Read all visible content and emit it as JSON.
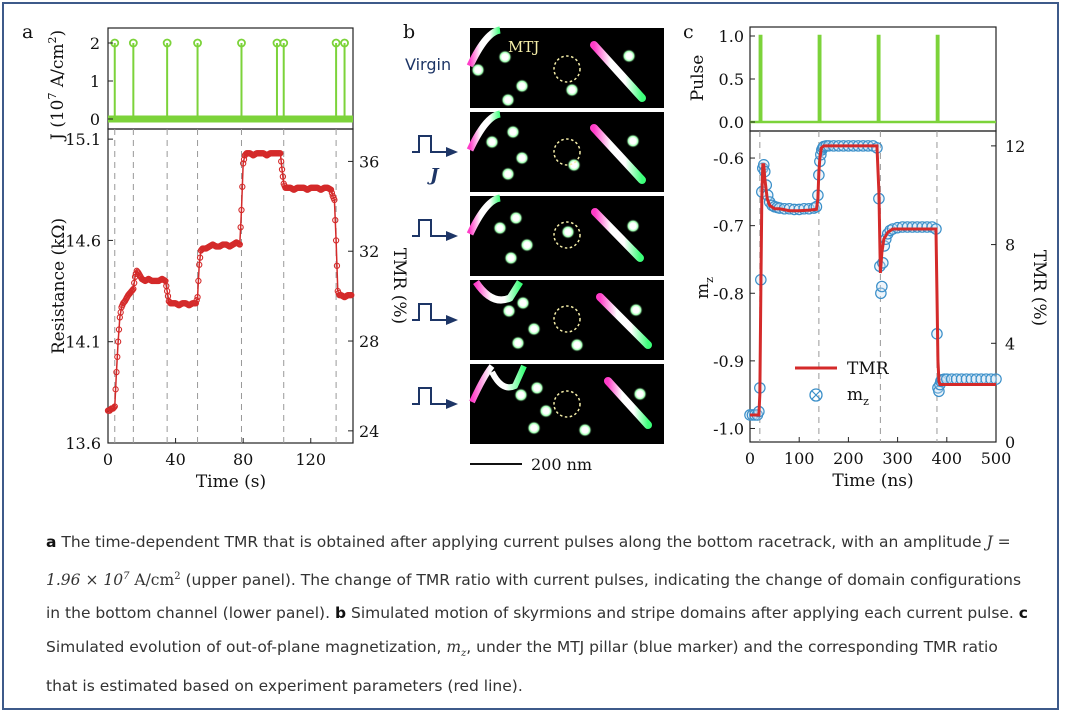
{
  "panel_labels": {
    "a": "a",
    "b": "b",
    "c": "c"
  },
  "chart_data": [
    {
      "type": "line",
      "panel": "a-top",
      "ylabel": "J (10^7 A/cm^2)",
      "ylabel_parts": {
        "main": "J (10",
        "exp1": "7",
        "unit": " A/cm",
        "exp2": "2",
        "close": ")"
      },
      "ylim": [
        0,
        2
      ],
      "xlim": [
        0,
        145
      ],
      "yticks": [
        "0",
        "1",
        "2"
      ],
      "pulse_times": [
        4,
        15,
        35,
        53,
        79,
        100,
        104,
        135,
        140
      ],
      "pulse_amplitude": 2,
      "color": "#7cd33a"
    },
    {
      "type": "line",
      "panel": "a-bottom",
      "xlabel": "Time (s)",
      "ylabel": "Resistance (kΩ)",
      "ylabel2": "TMR (%)",
      "xlim": [
        0,
        145
      ],
      "ylim": [
        13.6,
        15.15
      ],
      "xticks": [
        "0",
        "40",
        "80",
        "120"
      ],
      "yticks": [
        "13.6",
        "14.1",
        "14.6",
        "15.1"
      ],
      "yticks2": [
        "24",
        "28",
        "32",
        "36"
      ],
      "dashed_lines_x": [
        4,
        15,
        35,
        53,
        79,
        104,
        135
      ],
      "color": "#d42a2a",
      "series": [
        {
          "x": [
            0,
            1,
            2,
            3,
            4,
            5,
            6,
            7,
            8,
            9,
            10,
            12,
            14,
            15,
            16,
            17,
            18,
            20,
            22,
            24,
            26,
            28,
            30,
            32,
            34,
            35,
            36,
            37,
            38,
            40,
            42,
            44,
            46,
            48,
            50,
            52,
            53,
            54,
            55,
            56,
            58,
            60,
            62,
            64,
            66,
            68,
            70,
            72,
            74,
            76,
            78,
            79,
            80,
            81,
            82,
            84,
            86,
            88,
            90,
            92,
            94,
            96,
            98,
            100,
            102,
            103,
            104,
            105,
            106,
            108,
            110,
            112,
            114,
            116,
            118,
            120,
            122,
            124,
            126,
            128,
            130,
            132,
            133,
            134,
            135,
            136,
            137,
            138,
            140,
            142,
            144
          ],
          "y": [
            13.76,
            13.76,
            13.77,
            13.77,
            13.78,
            13.95,
            14.1,
            14.22,
            14.27,
            14.29,
            14.3,
            14.33,
            14.35,
            14.36,
            14.42,
            14.45,
            14.44,
            14.41,
            14.4,
            14.41,
            14.4,
            14.4,
            14.4,
            14.41,
            14.4,
            14.35,
            14.3,
            14.29,
            14.29,
            14.29,
            14.28,
            14.29,
            14.29,
            14.28,
            14.29,
            14.29,
            14.32,
            14.48,
            14.55,
            14.56,
            14.56,
            14.57,
            14.58,
            14.57,
            14.57,
            14.58,
            14.58,
            14.57,
            14.58,
            14.59,
            14.58,
            14.75,
            14.98,
            15.02,
            15.03,
            15.03,
            15.02,
            15.03,
            15.03,
            15.03,
            15.02,
            15.03,
            15.03,
            15.03,
            15.03,
            14.95,
            14.88,
            14.86,
            14.86,
            14.86,
            14.85,
            14.86,
            14.86,
            14.86,
            14.85,
            14.86,
            14.86,
            14.86,
            14.85,
            14.86,
            14.86,
            14.85,
            14.82,
            14.8,
            14.6,
            14.35,
            14.33,
            14.33,
            14.32,
            14.33,
            14.33
          ]
        }
      ]
    },
    {
      "type": "line",
      "panel": "c-top",
      "ylabel": "Pulse",
      "xlim": [
        0,
        500
      ],
      "ylim": [
        0,
        1
      ],
      "yticks": [
        "0.0",
        "0.5",
        "1.0"
      ],
      "pulse_times": [
        20,
        140,
        260,
        380
      ],
      "pulse_width": 7,
      "color": "#7cd33a"
    },
    {
      "type": "line",
      "panel": "c-bottom",
      "xlabel": "Time (ns)",
      "ylabel": "m_z",
      "ylabel_parts": {
        "main": "m",
        "sub": "z"
      },
      "ylabel2": "TMR (%)",
      "xlim": [
        0,
        500
      ],
      "ylim": [
        -1.02,
        -0.56
      ],
      "xticks": [
        "0",
        "100",
        "200",
        "300",
        "400",
        "500"
      ],
      "yticks": [
        "-1.0",
        "-0.9",
        "-0.8",
        "-0.7",
        "-0.6"
      ],
      "yticks2": [
        "0",
        "4",
        "8",
        "12"
      ],
      "dashed_lines_x": [
        20,
        140,
        265,
        380
      ],
      "legend": {
        "placement": "lower-middle",
        "entries": [
          {
            "label": "TMR",
            "color": "#d42a2a",
            "kind": "line"
          },
          {
            "label_main": "m",
            "label_sub": "z",
            "color": "#3a8fc9",
            "kind": "marker"
          }
        ]
      },
      "series": [
        {
          "name": "TMR",
          "color": "#d42a2a",
          "x": [
            0,
            18,
            20,
            22,
            24,
            26,
            28,
            30,
            35,
            40,
            50,
            60,
            80,
            100,
            120,
            135,
            138,
            140,
            142,
            145,
            150,
            160,
            180,
            200,
            220,
            240,
            258,
            262,
            265,
            268,
            272,
            280,
            290,
            300,
            320,
            340,
            360,
            378,
            380,
            382,
            384,
            386,
            390,
            400,
            420,
            450,
            480,
            500
          ],
          "y": [
            -0.98,
            -0.98,
            -0.95,
            -0.8,
            -0.66,
            -0.61,
            -0.61,
            -0.63,
            -0.66,
            -0.67,
            -0.675,
            -0.675,
            -0.678,
            -0.678,
            -0.677,
            -0.676,
            -0.66,
            -0.62,
            -0.6,
            -0.585,
            -0.582,
            -0.582,
            -0.582,
            -0.582,
            -0.582,
            -0.582,
            -0.582,
            -0.65,
            -0.77,
            -0.74,
            -0.72,
            -0.71,
            -0.705,
            -0.705,
            -0.705,
            -0.705,
            -0.705,
            -0.705,
            -0.8,
            -0.9,
            -0.93,
            -0.935,
            -0.935,
            -0.935,
            -0.935,
            -0.935,
            -0.935,
            -0.935
          ]
        },
        {
          "name_main": "m",
          "name_sub": "z",
          "color": "#3a8fc9",
          "x": [
            0,
            5,
            10,
            15,
            18,
            20,
            22,
            24,
            26,
            28,
            30,
            33,
            36,
            40,
            45,
            50,
            55,
            60,
            70,
            80,
            90,
            100,
            110,
            120,
            130,
            135,
            138,
            140,
            142,
            144,
            146,
            148,
            150,
            155,
            160,
            170,
            180,
            190,
            200,
            210,
            220,
            230,
            240,
            250,
            258,
            262,
            264,
            266,
            268,
            270,
            273,
            276,
            280,
            285,
            290,
            300,
            310,
            320,
            330,
            340,
            350,
            360,
            370,
            378,
            380,
            382,
            384,
            386,
            388,
            390,
            395,
            400,
            410,
            420,
            430,
            440,
            450,
            460,
            470,
            480,
            490,
            500
          ],
          "y": [
            -0.98,
            -0.98,
            -0.98,
            -0.98,
            -0.975,
            -0.94,
            -0.78,
            -0.65,
            -0.615,
            -0.61,
            -0.62,
            -0.64,
            -0.655,
            -0.665,
            -0.67,
            -0.672,
            -0.673,
            -0.674,
            -0.675,
            -0.675,
            -0.676,
            -0.676,
            -0.675,
            -0.675,
            -0.674,
            -0.672,
            -0.655,
            -0.625,
            -0.605,
            -0.595,
            -0.588,
            -0.585,
            -0.583,
            -0.582,
            -0.582,
            -0.582,
            -0.582,
            -0.582,
            -0.582,
            -0.582,
            -0.582,
            -0.582,
            -0.582,
            -0.582,
            -0.585,
            -0.66,
            -0.76,
            -0.8,
            -0.79,
            -0.755,
            -0.73,
            -0.72,
            -0.712,
            -0.707,
            -0.705,
            -0.703,
            -0.702,
            -0.702,
            -0.702,
            -0.702,
            -0.702,
            -0.702,
            -0.702,
            -0.705,
            -0.86,
            -0.94,
            -0.945,
            -0.935,
            -0.93,
            -0.928,
            -0.927,
            -0.927,
            -0.927,
            -0.927,
            -0.927,
            -0.927,
            -0.927,
            -0.927,
            -0.927,
            -0.927,
            -0.927,
            -0.927
          ]
        }
      ]
    }
  ],
  "panel_b": {
    "label_virgin": "Virgin",
    "label_mtj": "MTJ",
    "label_J": "J",
    "scale_bar": "200 nm"
  },
  "caption": {
    "a_label": "a",
    "a_text_1": " The time-dependent TMR that is obtained after applying current pulses along the bottom racetrack, with an amplitude ",
    "math_J": "J = 1.96 × 10",
    "math_exp": "7",
    "math_unit": " A/cm",
    "math_unit_exp": "2",
    "a_text_2": " (upper panel). The change of TMR ratio with current pulses, indicating the change of domain configurations in the bottom channel (lower panel). ",
    "b_label": "b",
    "b_text": " Simulated motion of skyrmions and stripe domains after applying each current pulse. ",
    "c_label": "c",
    "c_text_1": " Simulated evolution of out-of-plane magnetization, ",
    "math_mz": "m",
    "math_mz_sub": "z",
    "c_text_2": ", under the MTJ pillar (blue marker) and the corresponding TMR ratio that is estimated based on experiment parameters (red line)."
  }
}
